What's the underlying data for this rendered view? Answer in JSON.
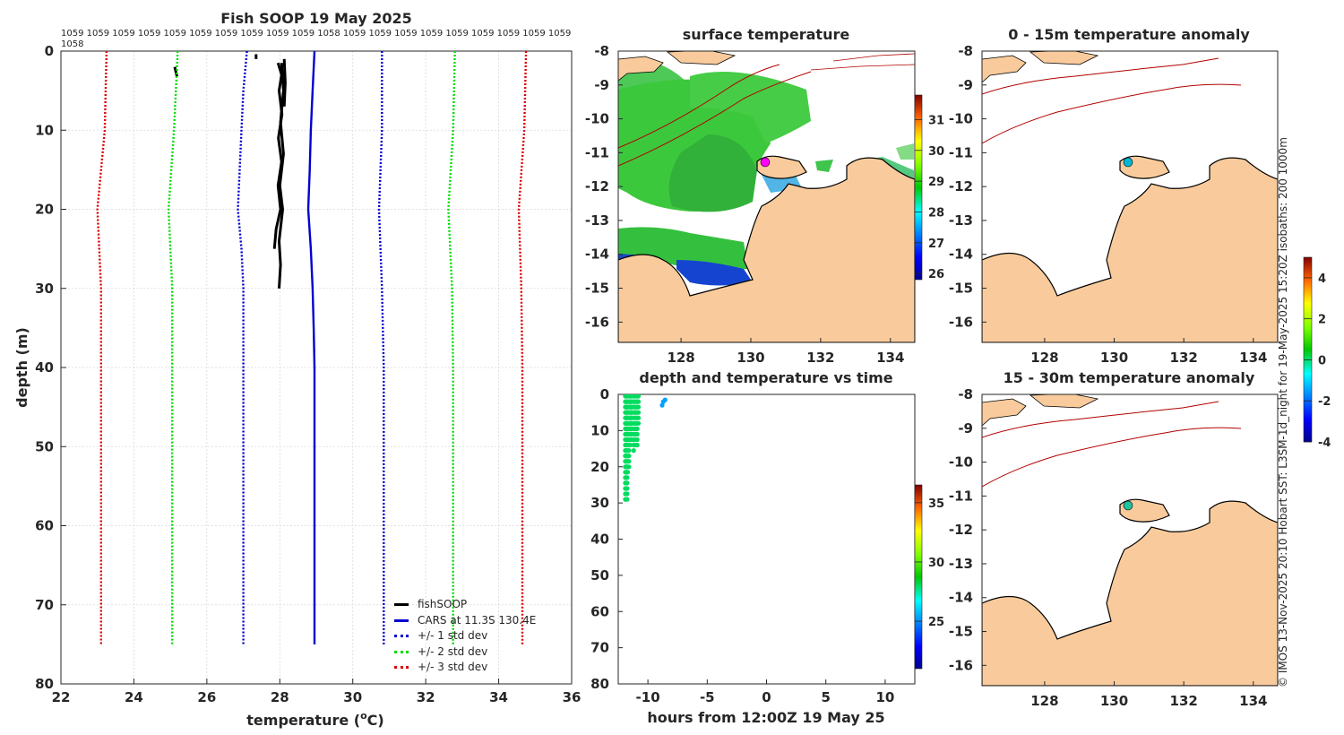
{
  "chart_data": [
    {
      "id": "profile",
      "type": "line",
      "title": "Fish SOOP 19 May 2025",
      "xlabel": "temperature (",
      "xlabel_unit": "o",
      "xlabel_tail": "C)",
      "ylabel": "depth (m)",
      "xlim": [
        22,
        36
      ],
      "ylim": [
        0,
        80
      ],
      "xticks": [
        22,
        24,
        26,
        28,
        30,
        32,
        34,
        36
      ],
      "yticks": [
        0,
        10,
        20,
        30,
        40,
        50,
        60,
        70,
        80
      ],
      "grid": true,
      "top_labels_row1": "1059 1059 1059 1059 1059 1059 1059 1059 1059 1059 1058 1059 1059 1059 1059 1059 1059 1059 1059 1059",
      "top_labels_row2": "1058",
      "legend_position": "bottom-right",
      "series": [
        {
          "name": "fishSOOP",
          "color": "#000000",
          "style": "solid",
          "segments": [
            [
              [
                27.95,
                1.5
              ],
              [
                28.05,
                3
              ],
              [
                27.98,
                5
              ],
              [
                28.06,
                8
              ],
              [
                27.96,
                11
              ],
              [
                28.05,
                14
              ],
              [
                27.95,
                17
              ],
              [
                28.02,
                20
              ],
              [
                27.9,
                22.5
              ],
              [
                27.85,
                25
              ]
            ],
            [
              [
                28.05,
                1.5
              ],
              [
                28.1,
                5
              ],
              [
                28.02,
                9
              ],
              [
                28.1,
                13
              ],
              [
                28.0,
                17
              ],
              [
                28.08,
                20
              ],
              [
                27.98,
                24
              ],
              [
                28.02,
                27
              ],
              [
                27.98,
                30
              ]
            ],
            [
              [
                28.12,
                1
              ],
              [
                28.15,
                4
              ],
              [
                28.12,
                7
              ]
            ],
            [
              [
                25.12,
                2
              ],
              [
                25.18,
                3.2
              ]
            ],
            [
              [
                27.35,
                0.4
              ],
              [
                27.35,
                1
              ]
            ]
          ]
        },
        {
          "name": "CARS at 11.3S 130.4E",
          "color": "#0000d0",
          "style": "solid",
          "points": [
            [
              28.95,
              0
            ],
            [
              28.9,
              5
            ],
            [
              28.85,
              10
            ],
            [
              28.82,
              15
            ],
            [
              28.78,
              20
            ],
            [
              28.85,
              25
            ],
            [
              28.9,
              30
            ],
            [
              28.93,
              35
            ],
            [
              28.95,
              40
            ],
            [
              28.95,
              50
            ],
            [
              28.95,
              60
            ],
            [
              28.95,
              70
            ],
            [
              28.95,
              75
            ]
          ]
        },
        {
          "name": "+/- 1 std dev",
          "color": "#0000d0",
          "style": "dotted",
          "lower": [
            [
              27.1,
              0
            ],
            [
              27.0,
              5
            ],
            [
              26.95,
              10
            ],
            [
              26.9,
              15
            ],
            [
              26.85,
              20
            ],
            [
              26.95,
              25
            ],
            [
              27.0,
              30
            ],
            [
              27.0,
              40
            ],
            [
              27.0,
              75
            ]
          ],
          "upper": [
            [
              30.8,
              0
            ],
            [
              30.8,
              10
            ],
            [
              30.72,
              20
            ],
            [
              30.8,
              30
            ],
            [
              30.85,
              40
            ],
            [
              30.85,
              75
            ]
          ]
        },
        {
          "name": "+/- 2 std dev",
          "color": "#00dd00",
          "style": "dotted",
          "lower": [
            [
              25.2,
              0
            ],
            [
              25.1,
              10
            ],
            [
              24.95,
              20
            ],
            [
              25.05,
              30
            ],
            [
              25.05,
              40
            ],
            [
              25.05,
              75
            ]
          ],
          "upper": [
            [
              32.8,
              0
            ],
            [
              32.75,
              10
            ],
            [
              32.62,
              20
            ],
            [
              32.72,
              30
            ],
            [
              32.75,
              40
            ],
            [
              32.75,
              75
            ]
          ]
        },
        {
          "name": "+/- 3 std dev",
          "color": "#dd0000",
          "style": "dotted",
          "lower": [
            [
              23.25,
              0
            ],
            [
              23.2,
              10
            ],
            [
              23.0,
              20
            ],
            [
              23.1,
              30
            ],
            [
              23.1,
              40
            ],
            [
              23.1,
              75
            ]
          ],
          "upper": [
            [
              34.75,
              0
            ],
            [
              34.7,
              10
            ],
            [
              34.55,
              20
            ],
            [
              34.62,
              30
            ],
            [
              34.65,
              40
            ],
            [
              34.65,
              75
            ]
          ]
        }
      ]
    },
    {
      "id": "surface",
      "type": "heatmap",
      "title": "surface temperature",
      "xlim": [
        126.2,
        134.7
      ],
      "ylim": [
        -16.6,
        -8
      ],
      "xticks": [
        128,
        130,
        132,
        134
      ],
      "yticks": [
        -8,
        -9,
        -10,
        -11,
        -12,
        -13,
        -14,
        -15,
        -16
      ],
      "colorbar": {
        "min": 25.8,
        "max": 31.8,
        "ticks": [
          26,
          27,
          28,
          29,
          30,
          31
        ]
      }
    },
    {
      "id": "timeseries",
      "type": "scatter",
      "title": "depth and temperature vs time",
      "xlabel": "hours from 12:00Z 19 May 25",
      "xlim": [
        -12.5,
        12.5
      ],
      "ylim": [
        0,
        80
      ],
      "xticks": [
        -10,
        -5,
        0,
        5,
        10
      ],
      "yticks": [
        0,
        10,
        20,
        30,
        40,
        50,
        60,
        70,
        80
      ],
      "colorbar": {
        "min": 21,
        "max": 36.5,
        "ticks": [
          25,
          30,
          35
        ]
      },
      "points_hours": [
        -11.9,
        -11.85,
        -11.8,
        -11.75,
        -11.7,
        -11.6,
        -11.5,
        -11.45,
        -11.4,
        -11.35,
        -11.2,
        -11.1,
        -11.0,
        -10.9,
        -10.8
      ],
      "points_max_depth": [
        29,
        27,
        24,
        30,
        22,
        20,
        15,
        12,
        13,
        10,
        16,
        15,
        12,
        14,
        9
      ],
      "points_temp": 28,
      "cool_points": [
        [
          -8.7,
          2
        ],
        [
          -8.55,
          1.5
        ],
        [
          -8.8,
          3
        ]
      ],
      "cool_temp": 25.3
    },
    {
      "id": "anom_0_15",
      "type": "heatmap",
      "title": "0 - 15m temperature anomaly",
      "xlim": [
        126.2,
        134.7
      ],
      "ylim": [
        -16.6,
        -8
      ],
      "xticks": [
        128,
        130,
        132,
        134
      ],
      "yticks": [
        -8,
        -9,
        -10,
        -11,
        -12,
        -13,
        -14,
        -15,
        -16
      ],
      "marker": {
        "lon": 130.4,
        "lat": -11.3,
        "value": -1.6
      }
    },
    {
      "id": "anom_15_30",
      "type": "heatmap",
      "title": "15 - 30m temperature anomaly",
      "xlim": [
        126.2,
        134.7
      ],
      "ylim": [
        -16.6,
        -8
      ],
      "xticks": [
        128,
        130,
        132,
        134
      ],
      "yticks": [
        -8,
        -9,
        -10,
        -11,
        -12,
        -13,
        -14,
        -15,
        -16
      ],
      "marker": {
        "lon": 130.4,
        "lat": -11.3,
        "value": -1.0
      },
      "colorbar": {
        "min": -4,
        "max": 5,
        "ticks": [
          -4,
          -2,
          0,
          2,
          4
        ]
      }
    }
  ],
  "legend": {
    "items": [
      {
        "label": "fishSOOP",
        "color": "#000000",
        "style": "solid"
      },
      {
        "label": "CARS at 11.3S 130.4E",
        "color": "#0000d0",
        "style": "solid"
      },
      {
        "label": "+/- 1 std dev",
        "color": "#0000d0",
        "style": "dotted"
      },
      {
        "label": "+/- 2 std dev",
        "color": "#00dd00",
        "style": "dotted"
      },
      {
        "label": "+/- 3 std dev",
        "color": "#dd0000",
        "style": "dotted"
      }
    ]
  },
  "credit": "© IMOS 13-Nov-2025 20:10 Hobart SST: L3SM-1d_night for 19-May-2025 15:20Z isobaths: 200  1000m",
  "colors": {
    "land": "#f9cb9c",
    "isobath": "#b30000",
    "coast": "#000000"
  }
}
